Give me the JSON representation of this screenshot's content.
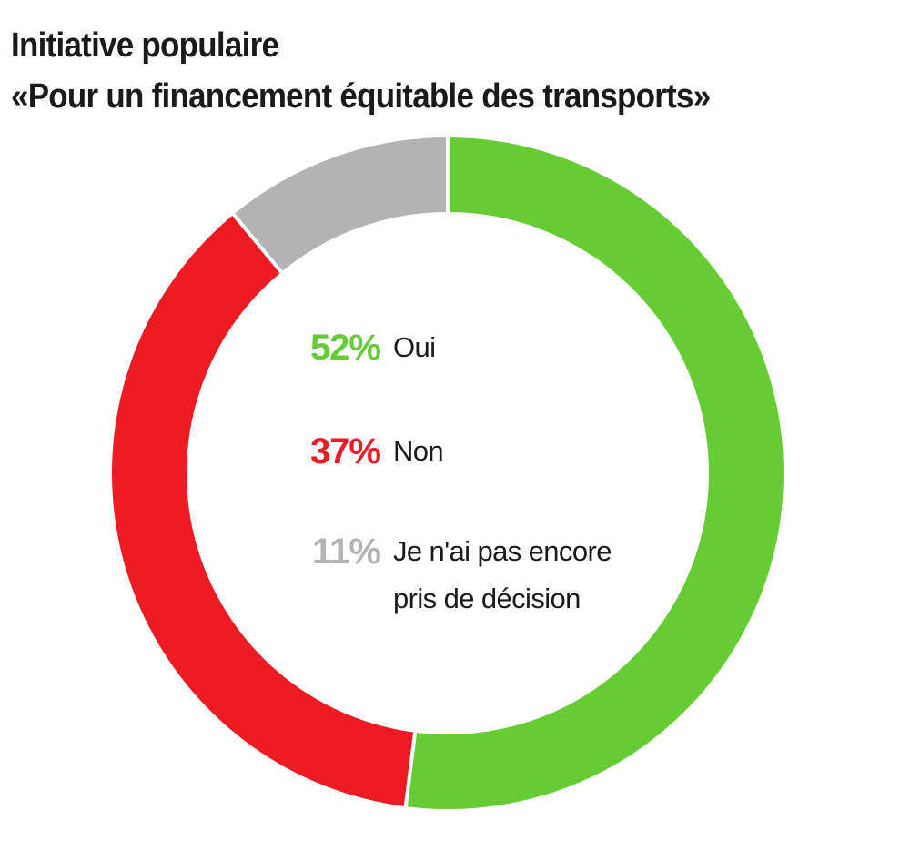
{
  "chart_data": {
    "type": "pie",
    "title": [
      "Initiative populaire",
      "«Pour un financement équitable des transports»"
    ],
    "slices": [
      {
        "label": "Oui",
        "value": 52,
        "value_label": "52%",
        "color": "#66cc33"
      },
      {
        "label": "Non",
        "value": 37,
        "value_label": "37%",
        "color": "#ed1c24"
      },
      {
        "label": "Je n'ai pas encore\npris de décision",
        "value": 11,
        "value_label": "11%",
        "color": "#b3b3b3"
      }
    ],
    "donut": true,
    "legend": "center"
  }
}
